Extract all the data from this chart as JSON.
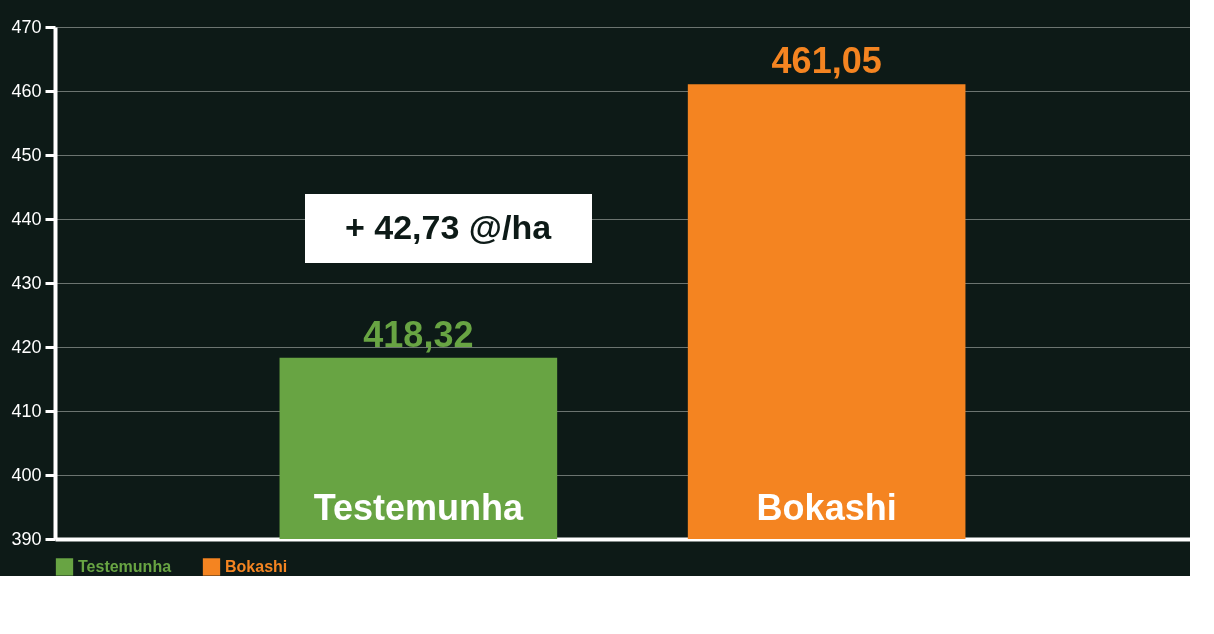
{
  "chart_data": {
    "type": "bar",
    "categories": [
      "Testemunha",
      "Bokashi"
    ],
    "series": [
      {
        "name": "Testemunha",
        "color": "#68a443",
        "values": [
          418.32,
          null
        ],
        "value_labels": [
          "418,32",
          null
        ]
      },
      {
        "name": "Bokashi",
        "color": "#f48421",
        "values": [
          null,
          461.05
        ],
        "value_labels": [
          null,
          "461,05"
        ]
      }
    ],
    "annotations": [
      "+ 42,73 @/ha"
    ],
    "ylim": [
      390,
      470
    ],
    "yticks": [
      390,
      400,
      410,
      420,
      430,
      440,
      450,
      460,
      470
    ],
    "grid": "y",
    "legend": "bottom left"
  }
}
